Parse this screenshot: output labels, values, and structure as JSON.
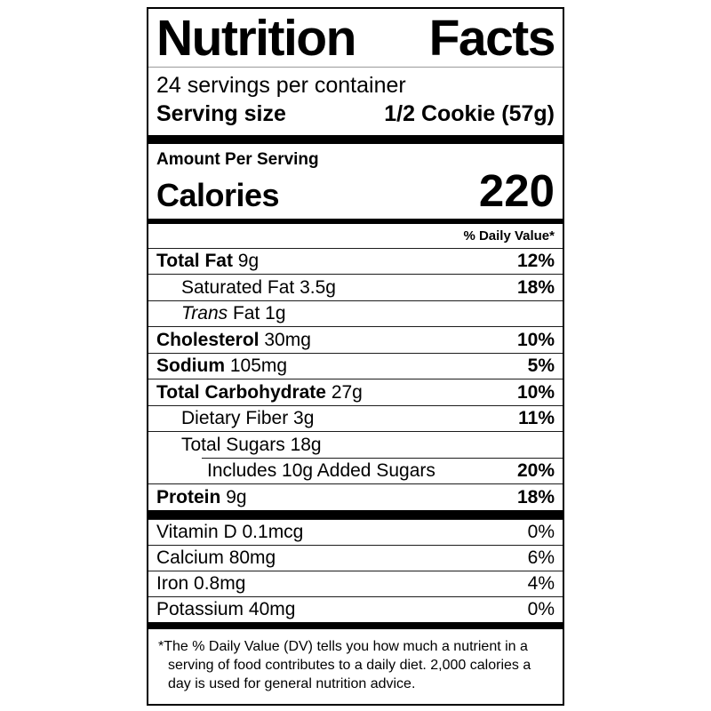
{
  "label": {
    "title": "Nutrition Facts",
    "servings_per_container": "24 servings per container",
    "serving_size": {
      "label": "Serving size",
      "value": "1/2 Cookie (57g)"
    },
    "amount_per_serving": "Amount Per Serving",
    "calories": {
      "label": "Calories",
      "value": "220"
    },
    "daily_value_header": "% Daily Value*",
    "nutrients": [
      {
        "name": "Total Fat",
        "amount": "9g",
        "dv": "12%"
      },
      {
        "name": "Saturated Fat",
        "amount": "3.5g",
        "dv": "18%"
      },
      {
        "name_italic": "Trans",
        "name": "Fat",
        "amount": "1g",
        "dv": ""
      },
      {
        "name": "Cholesterol",
        "amount": "30mg",
        "dv": "10%"
      },
      {
        "name": "Sodium",
        "amount": "105mg",
        "dv": "5%"
      },
      {
        "name": "Total Carbohydrate",
        "amount": "27g",
        "dv": "10%"
      },
      {
        "name": "Dietary Fiber",
        "amount": "3g",
        "dv": "11%"
      },
      {
        "name": "Total Sugars",
        "amount": "18g",
        "dv": ""
      },
      {
        "name": "Includes 10g Added Sugars",
        "amount": "",
        "dv": "20%"
      },
      {
        "name": "Protein",
        "amount": "9g",
        "dv": "18%"
      }
    ],
    "micronutrients": [
      {
        "name": "Vitamin D",
        "amount": "0.1mcg",
        "dv": "0%"
      },
      {
        "name": "Calcium",
        "amount": "80mg",
        "dv": "6%"
      },
      {
        "name": "Iron",
        "amount": "0.8mg",
        "dv": "4%"
      },
      {
        "name": "Potassium",
        "amount": "40mg",
        "dv": "0%"
      }
    ],
    "footnote_marker": "*",
    "footnote": "The % Daily Value (DV) tells you how much a nutrient in a serving of food contributes to a daily diet. 2,000 calories a day is used for general nutrition advice."
  }
}
